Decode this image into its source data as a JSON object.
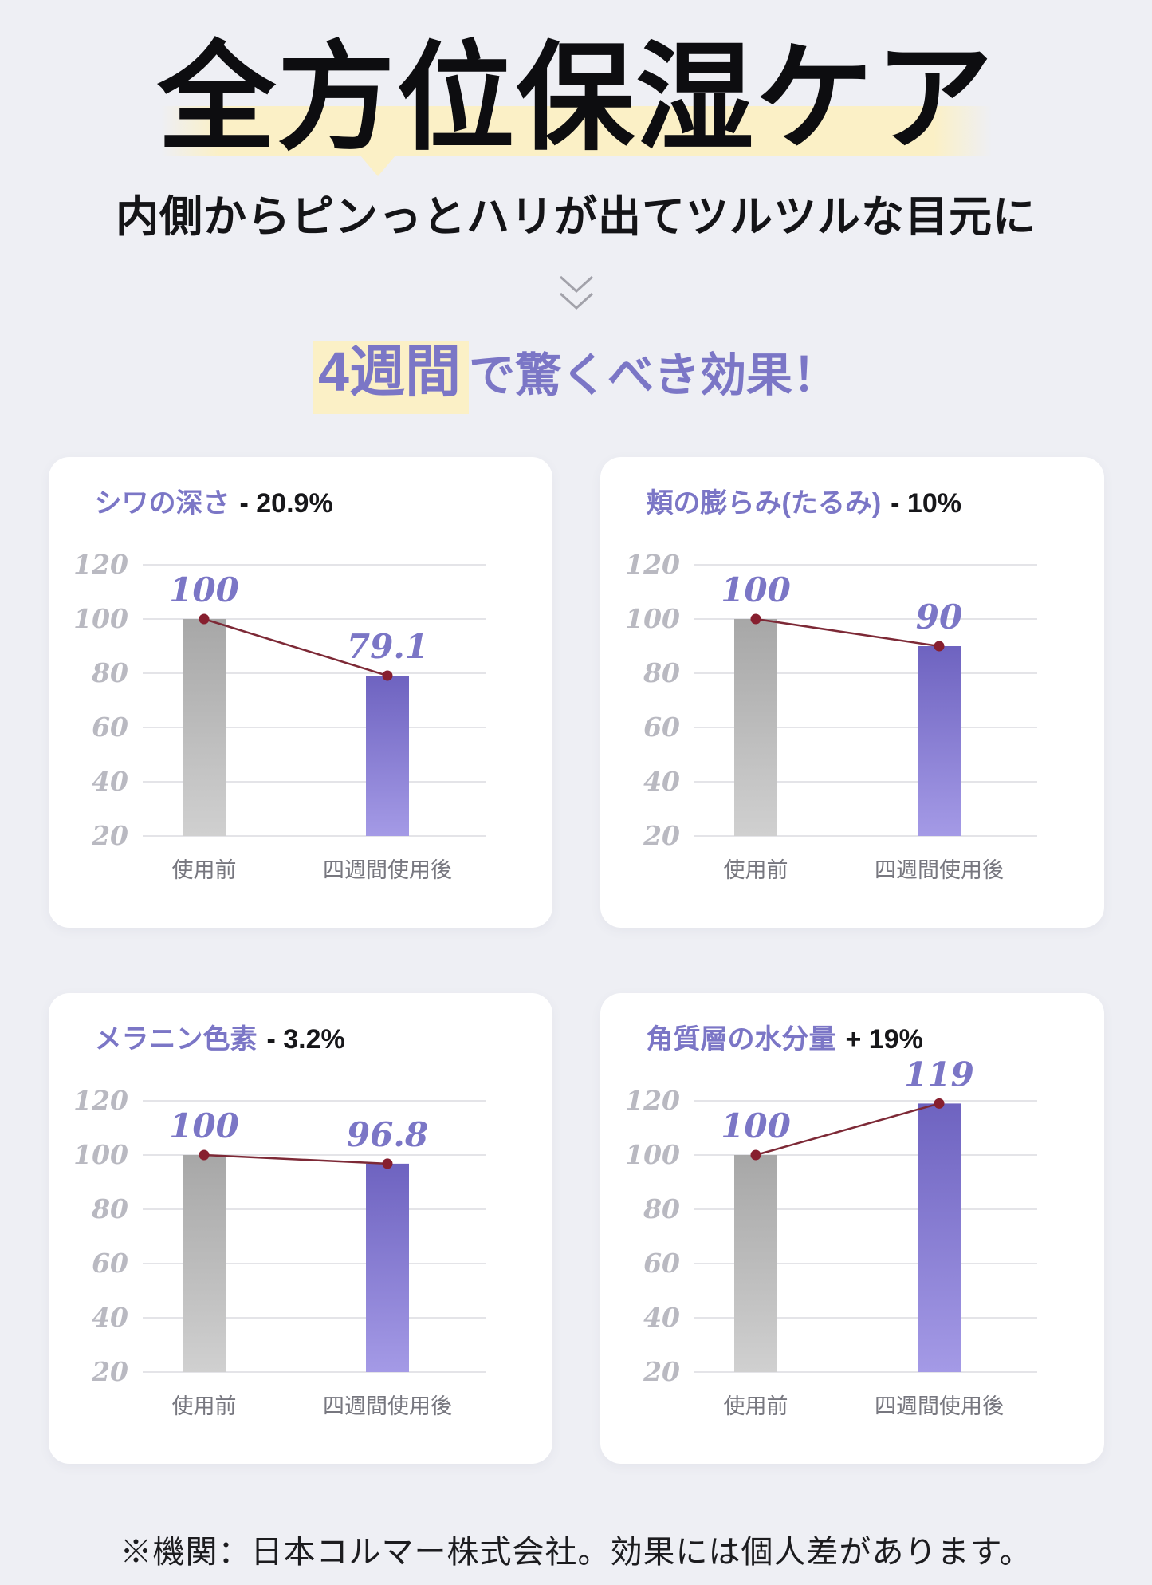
{
  "page": {
    "background_color": "#eeeff4",
    "accent_purple": "#7b76c6",
    "highlight_yellow": "#fbf0c6"
  },
  "header": {
    "title": "全方位保湿ケア",
    "subtitle": "内側からピンっとハリが出てツルツルな目元に",
    "arrow_icon": "double-chevron-down",
    "lead_highlight": "4週間",
    "lead_rest": "で驚くべき効果！"
  },
  "chart_style": {
    "bar_before_top": "#a7a7a7",
    "bar_before_bottom": "#d0d0d0",
    "bar_after_top": "#6e63c0",
    "bar_after_bottom": "#a49ae6",
    "line": "#7d2936",
    "dot": "#871f2f",
    "grid": "#dcdce1",
    "tick_color": "#b9b9c1",
    "xlabel_color": "#77777f",
    "value_label_color": "#7b76c6"
  },
  "chart_data": [
    {
      "type": "bar",
      "metric": "シワの深さ",
      "change": "- 20.9%",
      "categories": [
        "使用前",
        "四週間使用後"
      ],
      "values": [
        100,
        79.1
      ],
      "ylim": [
        20,
        120
      ],
      "yticks": [
        120,
        100,
        80,
        60,
        40,
        20
      ],
      "grid": true,
      "overlay": "line-with-dots"
    },
    {
      "type": "bar",
      "metric": "頬の膨らみ(たるみ)",
      "change": "- 10%",
      "categories": [
        "使用前",
        "四週間使用後"
      ],
      "values": [
        100,
        90
      ],
      "ylim": [
        20,
        120
      ],
      "yticks": [
        120,
        100,
        80,
        60,
        40,
        20
      ],
      "grid": true,
      "overlay": "line-with-dots"
    },
    {
      "type": "bar",
      "metric": "メラニン色素",
      "change": "- 3.2%",
      "categories": [
        "使用前",
        "四週間使用後"
      ],
      "values": [
        100,
        96.8
      ],
      "ylim": [
        20,
        120
      ],
      "yticks": [
        120,
        100,
        80,
        60,
        40,
        20
      ],
      "grid": true,
      "overlay": "line-with-dots"
    },
    {
      "type": "bar",
      "metric": "角質層の水分量",
      "change": "+ 19%",
      "categories": [
        "使用前",
        "四週間使用後"
      ],
      "values": [
        100,
        119
      ],
      "ylim": [
        20,
        120
      ],
      "yticks": [
        120,
        100,
        80,
        60,
        40,
        20
      ],
      "grid": true,
      "overlay": "line-with-dots"
    }
  ],
  "footer": {
    "note": "※機関：日本コルマー株式会社。効果には個人差があります。"
  }
}
